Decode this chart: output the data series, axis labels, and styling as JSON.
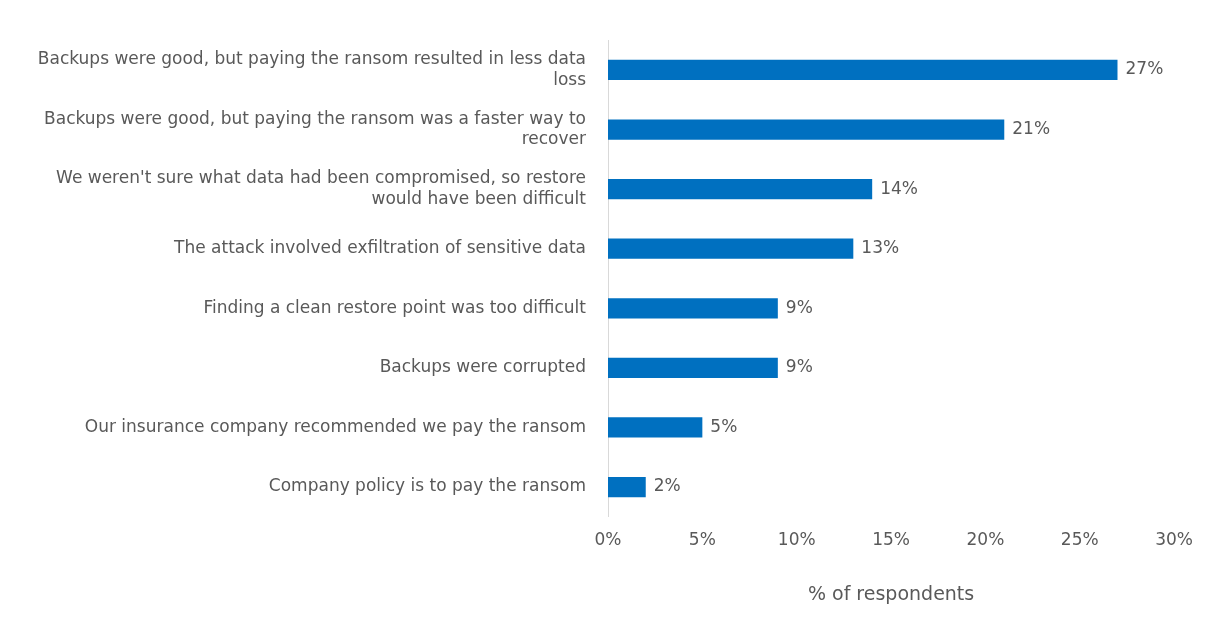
{
  "chart_data": {
    "type": "bar",
    "orientation": "horizontal",
    "xlabel": "% of respondents",
    "categories": [
      "Backups were good, but paying the ransom resulted in less data loss",
      "Backups were good, but paying the ransom was a faster way to recover",
      "We weren't sure what data had been compromised, so restore would have been difficult",
      "The attack involved exfiltration of sensitive data",
      "Finding a clean restore point was too difficult",
      "Backups were corrupted",
      "Our insurance company recommended we pay the ransom",
      "Company policy is to pay the ransom"
    ],
    "values": [
      27,
      21,
      14,
      13,
      9,
      9,
      5,
      2
    ],
    "value_labels": [
      "27%",
      "21%",
      "14%",
      "13%",
      "9%",
      "9%",
      "5%",
      "2%"
    ],
    "color": "#0070c0",
    "xlim": [
      0,
      30
    ],
    "xticks": [
      {
        "value": 0,
        "label": "0%"
      },
      {
        "value": 5,
        "label": "5%"
      },
      {
        "value": 10,
        "label": "10%"
      },
      {
        "value": 15,
        "label": "15%"
      },
      {
        "value": 20,
        "label": "20%"
      },
      {
        "value": 25,
        "label": "25%"
      },
      {
        "value": 30,
        "label": "30%"
      }
    ],
    "grid": false,
    "legend": false
  }
}
